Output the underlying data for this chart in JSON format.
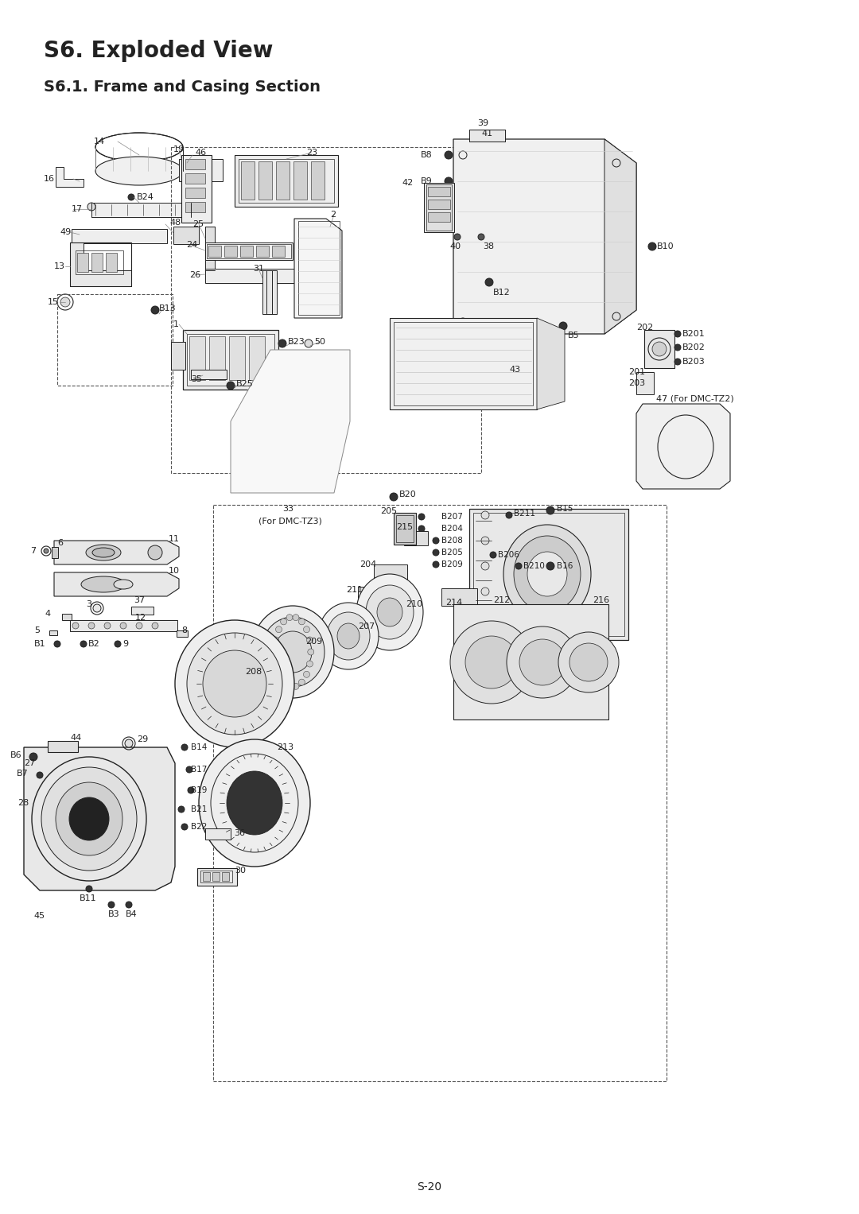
{
  "title": "S6. Exploded View",
  "subtitle": "S6.1. Frame and Casing Section",
  "page_number": "S-20",
  "bg": "#ffffff",
  "fg": "#222222",
  "fig_width": 10.8,
  "fig_height": 15.27,
  "dpi": 100
}
